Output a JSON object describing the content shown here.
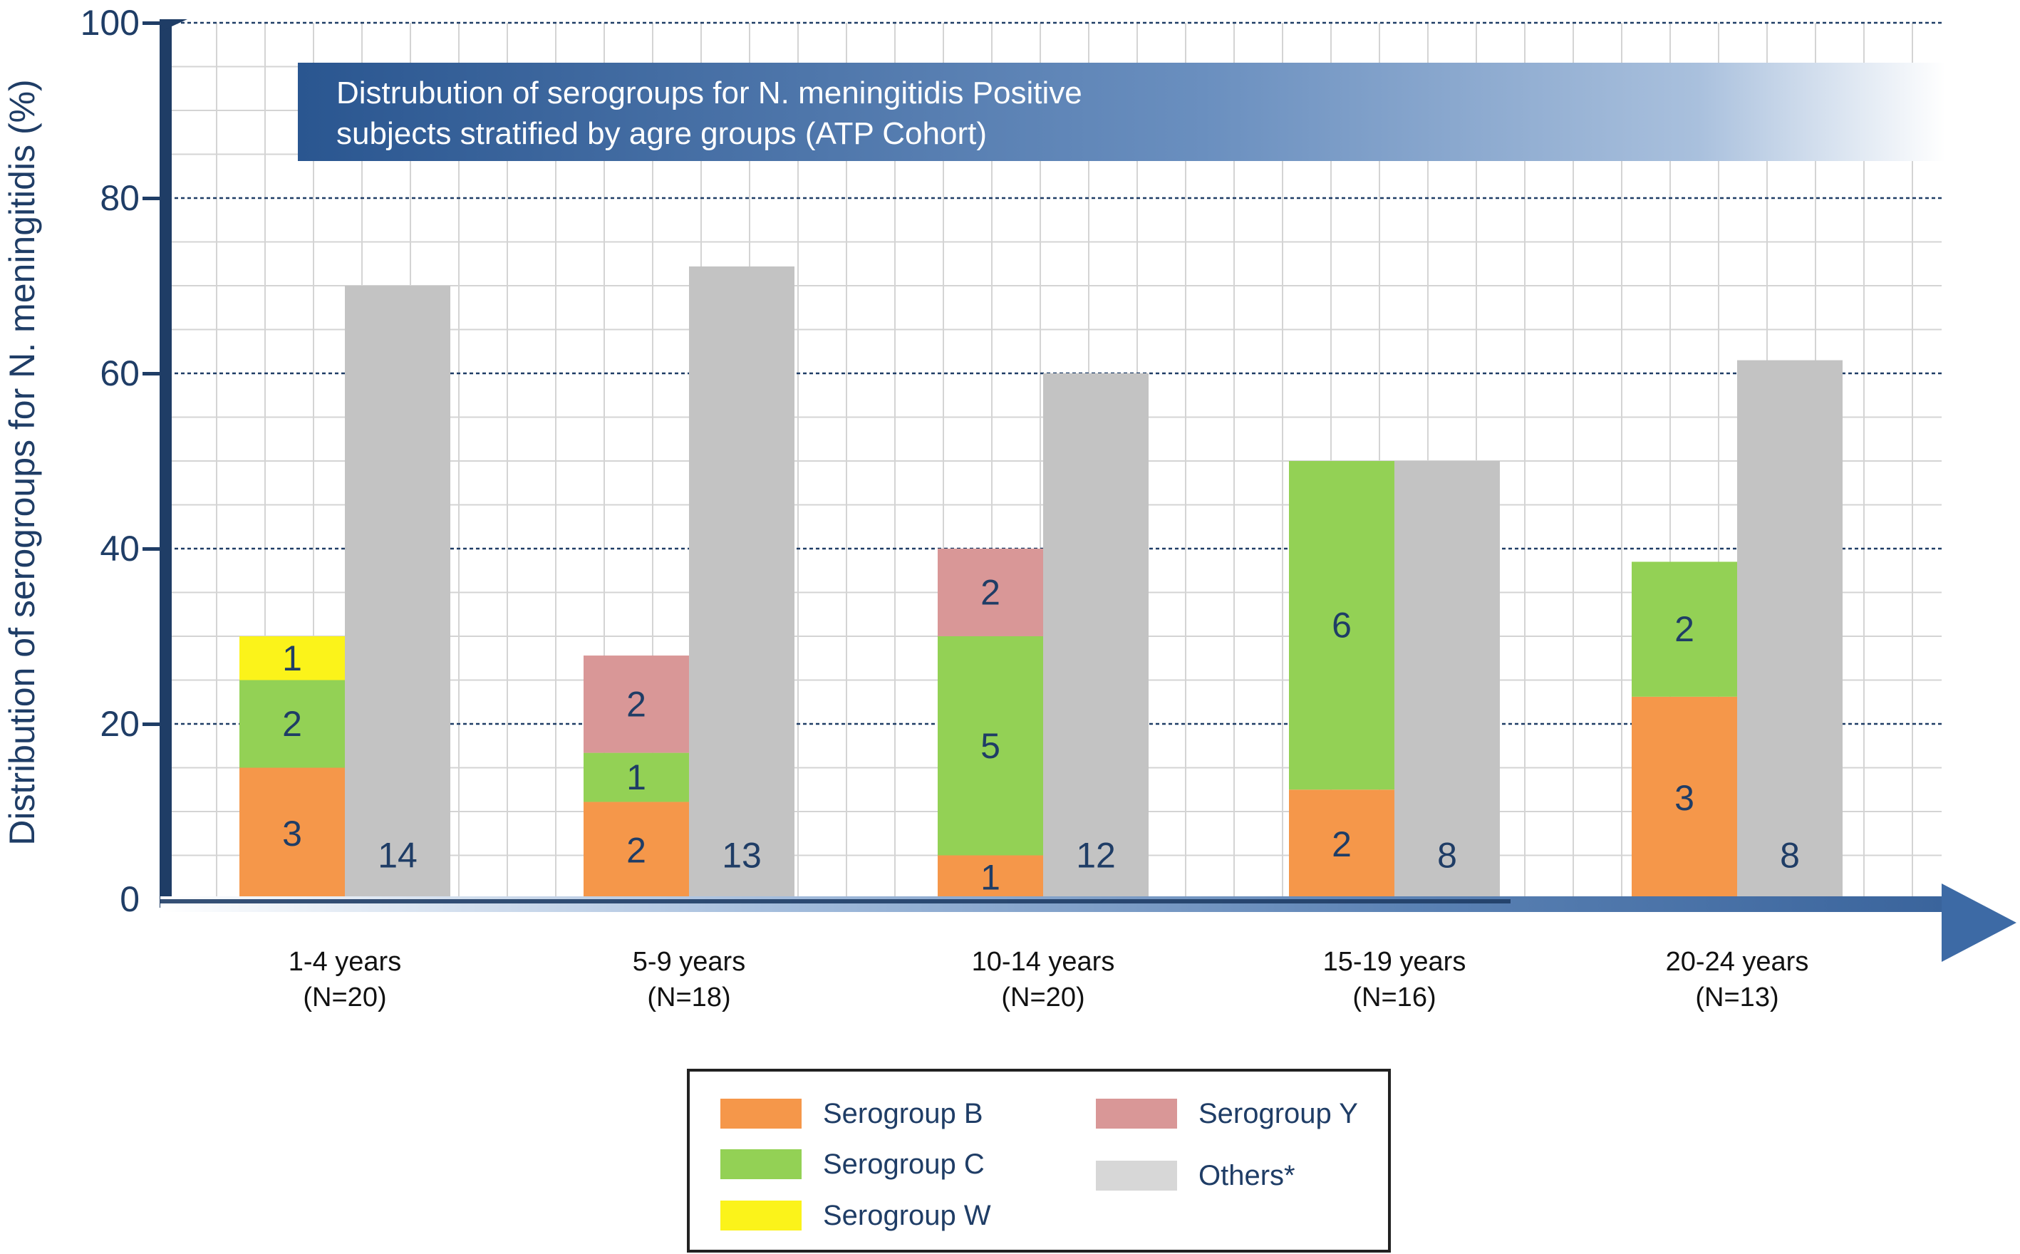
{
  "chart_data": {
    "type": "bar",
    "title": "Distrubution of serogroups for N. meningitidis Positive subjects stratified by agre groups (ATP Cohort)",
    "title_lines": [
      "Distrubution of serogroups for N. meningitidis Positive",
      "subjects stratified by agre groups (ATP Cohort)"
    ],
    "xlabel": "",
    "ylabel": "Distribution of serogroups for N. meningitidis (%)",
    "ylim": [
      0,
      100
    ],
    "yticks": [
      "0",
      "20",
      "40",
      "60",
      "80",
      "100"
    ],
    "grid": true,
    "legend_position": "bottom-center",
    "categories": [
      {
        "line1": "1-4 years",
        "line2": "(N=20)"
      },
      {
        "line1": "5-9 years",
        "line2": "(N=18)"
      },
      {
        "line1": "10-14 years",
        "line2": "(N=20)"
      },
      {
        "line1": "15-19 years",
        "line2": "(N=16)"
      },
      {
        "line1": "20-24 years",
        "line2": "(N=13)"
      }
    ],
    "stacked_bars": [
      [
        {
          "series": "B",
          "value": 15,
          "label": "3"
        },
        {
          "series": "C",
          "value": 10,
          "label": "2"
        },
        {
          "series": "W",
          "value": 5,
          "label": "1"
        }
      ],
      [
        {
          "series": "B",
          "value": 11.1,
          "label": "2"
        },
        {
          "series": "C",
          "value": 5.6,
          "label": "1"
        },
        {
          "series": "Y",
          "value": 11.1,
          "label": "2"
        }
      ],
      [
        {
          "series": "B",
          "value": 5,
          "label": "1"
        },
        {
          "series": "C",
          "value": 25,
          "label": "5"
        },
        {
          "series": "Y",
          "value": 10,
          "label": "2"
        }
      ],
      [
        {
          "series": "B",
          "value": 12.5,
          "label": "2"
        },
        {
          "series": "C",
          "value": 37.5,
          "label": "6"
        }
      ],
      [
        {
          "series": "B",
          "value": 23.1,
          "label": "3"
        },
        {
          "series": "C",
          "value": 15.4,
          "label": "2"
        }
      ]
    ],
    "others_bars": [
      {
        "value": 70,
        "label": "14"
      },
      {
        "value": 72.2,
        "label": "13"
      },
      {
        "value": 60,
        "label": "12"
      },
      {
        "value": 50,
        "label": "8"
      },
      {
        "value": 61.5,
        "label": "8"
      }
    ],
    "series": [
      {
        "key": "B",
        "name": "Serogroup B",
        "color": "#f5974a"
      },
      {
        "key": "C",
        "name": "Serogroup C",
        "color": "#93d155"
      },
      {
        "key": "W",
        "name": "Serogroup W",
        "color": "#fbf31a"
      },
      {
        "key": "Y",
        "name": "Serogroup Y",
        "color": "#d99797"
      },
      {
        "key": "O",
        "name": "Others*",
        "color": "#c3c3c3"
      }
    ],
    "colors": {
      "axis": "#1f3d66",
      "grid_major": "#1f3d66",
      "grid_minor": "#d4d4d4",
      "title_banner": "#2f5a91",
      "text": "#1f3d66"
    }
  }
}
